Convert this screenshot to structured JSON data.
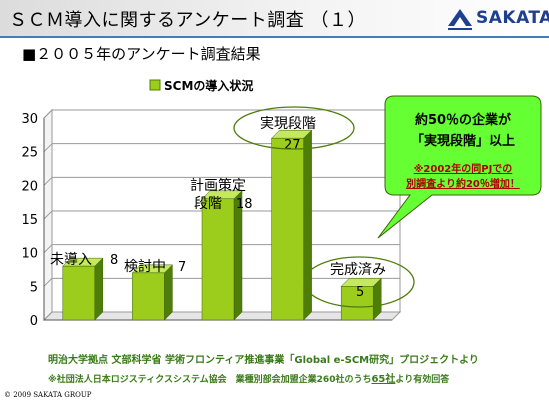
{
  "header": {
    "title": "ＳＣＭ導入に関するアンケート調査 （１）",
    "logo_text": "SAKATA",
    "subtitle": "■２００５年のアンケート調査結果"
  },
  "colors": {
    "bar_front": "#9ccc1c",
    "bar_side": "#4f7d0a",
    "bar_top": "#c4e860",
    "callout_fill": "#66ff33",
    "title_rule": "#3f7fbf",
    "logo": "#1f3f8f",
    "footnote": "#3a7a1a"
  },
  "chart_data": {
    "type": "bar",
    "title": "",
    "legend": "SCMの導入状況",
    "legend_position": "top",
    "categories": [
      "未導入",
      "検討中",
      "計画策定段階",
      "実現段階",
      "完成済み"
    ],
    "category_labels": [
      {
        "lines": [
          "未導入"
        ],
        "value_text": "8"
      },
      {
        "lines": [
          "検討中"
        ],
        "value_text": "7"
      },
      {
        "lines": [
          "計画策定",
          "段階"
        ],
        "value_text": "18"
      },
      {
        "lines": [
          "実現段階"
        ],
        "value_text": "27"
      },
      {
        "lines": [
          "完成済み"
        ],
        "value_text": "5"
      }
    ],
    "series": [
      {
        "name": "SCMの導入状況",
        "values": [
          8,
          7,
          18,
          27,
          5
        ]
      }
    ],
    "ylim": [
      0,
      30
    ],
    "yticks": [
      0,
      5,
      10,
      15,
      20,
      25,
      30
    ],
    "grid": true,
    "circled_categories": [
      "実現段階",
      "完成済み"
    ]
  },
  "callout": {
    "line1": "約50％の企業が",
    "line2": "「実現段階」以上",
    "note1": "※2002年の同PJでの",
    "note2": "別調査より約20％増加！"
  },
  "footer": {
    "line1": "明治大学拠点 文部科学省 学術フロンティア推進事業「Global e-SCM研究」プロジェクトより",
    "line2_prefix": "※社団法人日本ロジスティクスシステム協会　業種別部会加盟企業260社のうち",
    "line2_highlight": "65社",
    "line2_suffix": "より有効回答",
    "copyright": "© 2009 SAKATA GROUP"
  }
}
